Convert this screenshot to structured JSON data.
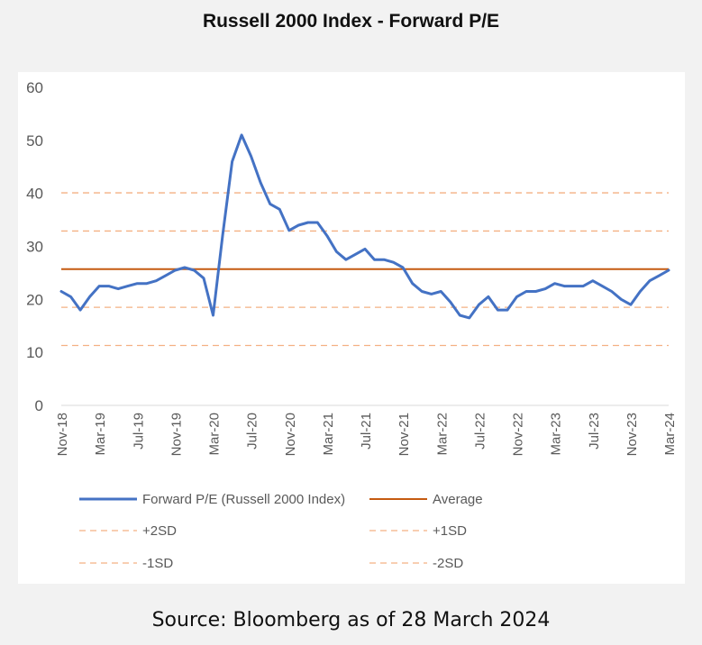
{
  "title": "Russell 2000 Index - Forward P/E",
  "source": "Source: Bloomberg as of 28 March 2024",
  "chart_data": {
    "type": "line",
    "title": "Russell 2000 Index - Forward P/E",
    "xlabel": "",
    "ylabel": "",
    "ylim": [
      0,
      60
    ],
    "y_ticks": [
      "0",
      "10",
      "20",
      "30",
      "40",
      "50",
      "60"
    ],
    "x_ticks": [
      "Nov-18",
      "Mar-19",
      "Jul-19",
      "Nov-19",
      "Mar-20",
      "Jul-20",
      "Nov-20",
      "Mar-21",
      "Jul-21",
      "Nov-21",
      "Mar-22",
      "Jul-22",
      "Nov-22",
      "Mar-23",
      "Jul-23",
      "Nov-23",
      "Mar-24"
    ],
    "grid": false,
    "legend_placement": "bottom",
    "series": [
      {
        "name": "Forward P/E (Russell 2000 Index)",
        "color": "#4472c4",
        "x": [
          "Nov-18",
          "Dec-18",
          "Jan-19",
          "Feb-19",
          "Mar-19",
          "Apr-19",
          "May-19",
          "Jun-19",
          "Jul-19",
          "Aug-19",
          "Sep-19",
          "Oct-19",
          "Nov-19",
          "Dec-19",
          "Jan-20",
          "Feb-20",
          "Mar-20",
          "Apr-20",
          "May-20",
          "Jun-20",
          "Jul-20",
          "Aug-20",
          "Sep-20",
          "Oct-20",
          "Nov-20",
          "Dec-20",
          "Jan-21",
          "Feb-21",
          "Mar-21",
          "Apr-21",
          "May-21",
          "Jun-21",
          "Jul-21",
          "Aug-21",
          "Sep-21",
          "Oct-21",
          "Nov-21",
          "Dec-21",
          "Jan-22",
          "Feb-22",
          "Mar-22",
          "Apr-22",
          "May-22",
          "Jun-22",
          "Jul-22",
          "Aug-22",
          "Sep-22",
          "Oct-22",
          "Nov-22",
          "Dec-22",
          "Jan-23",
          "Feb-23",
          "Mar-23",
          "Apr-23",
          "May-23",
          "Jun-23",
          "Jul-23",
          "Aug-23",
          "Sep-23",
          "Oct-23",
          "Nov-23",
          "Dec-23",
          "Jan-24",
          "Feb-24",
          "Mar-24"
        ],
        "values": [
          21.5,
          20.5,
          18,
          20.5,
          22.5,
          22.5,
          22,
          22.5,
          23,
          23,
          23.5,
          24.5,
          25.5,
          26,
          25.5,
          24,
          17,
          32,
          46,
          51,
          47,
          42,
          38,
          37,
          33,
          34,
          34.5,
          34.5,
          32,
          29,
          27.5,
          28.5,
          29.5,
          27.5,
          27.5,
          27,
          26,
          23,
          21.5,
          21,
          21.5,
          19.5,
          17,
          16.5,
          19,
          20.5,
          18,
          18,
          20.5,
          21.5,
          21.5,
          22,
          23,
          22.5,
          22.5,
          22.5,
          23.5,
          22.5,
          21.5,
          20,
          19,
          21.5,
          23.5,
          24.5,
          25.5
        ]
      },
      {
        "name": "Average",
        "color": "#c55a11",
        "value": 25.7
      },
      {
        "name": "+2SD",
        "color": "#f4b183",
        "value": 40.1
      },
      {
        "name": "+1SD",
        "color": "#f4b183",
        "value": 32.9
      },
      {
        "name": "-1SD",
        "color": "#f4b183",
        "value": 18.5
      },
      {
        "name": "-2SD",
        "color": "#f4b183",
        "value": 11.3
      }
    ]
  }
}
